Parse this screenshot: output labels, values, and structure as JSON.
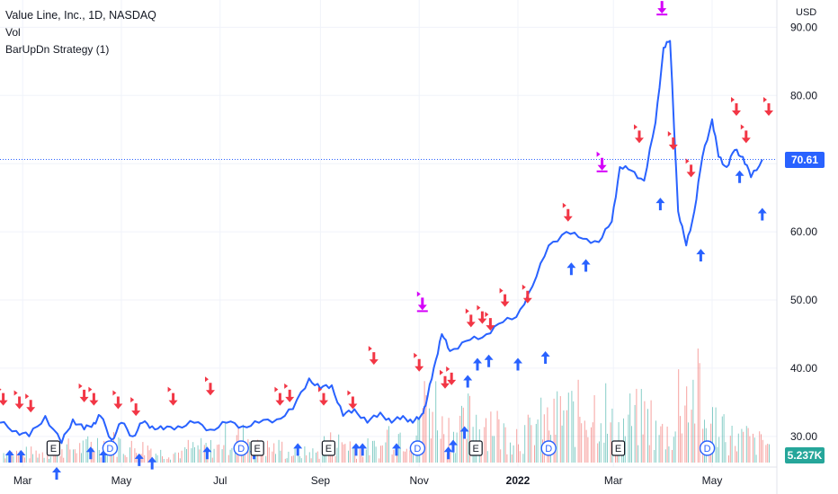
{
  "chart": {
    "symbol": "Value Line, Inc., 1D, NASDAQ",
    "volume_label": "Vol",
    "strategy_label": "BarUpDn Strategy (1)",
    "currency": "USD",
    "last_price": "70.61",
    "last_volume": "5.237K",
    "colors": {
      "line": "#2962ff",
      "buy_arrow": "#2962ff",
      "sell_arrow": "#f23645",
      "exit_arrow": "#d500f9",
      "vol_up": "#26a69a",
      "vol_down": "#ef5350",
      "price_tag": "#2962ff",
      "volume_tag": "#26a69a",
      "grid": "#f0f3fa"
    },
    "event_markers": [
      {
        "type": "E",
        "date": "2021-03-20"
      },
      {
        "type": "D",
        "date": "2021-04-24"
      },
      {
        "type": "D",
        "date": "2021-07-14"
      },
      {
        "type": "E",
        "date": "2021-07-24"
      },
      {
        "type": "E",
        "date": "2021-09-06"
      },
      {
        "type": "D",
        "date": "2021-10-31"
      },
      {
        "type": "E",
        "date": "2021-12-06"
      },
      {
        "type": "D",
        "date": "2022-01-20"
      },
      {
        "type": "E",
        "date": "2022-03-04"
      },
      {
        "type": "D",
        "date": "2022-04-28"
      }
    ]
  },
  "chart_data": {
    "type": "line",
    "title": "Value Line, Inc., 1D, NASDAQ",
    "xlabel": "",
    "ylabel": "USD",
    "x_ticks": [
      "Mar",
      "May",
      "Jul",
      "Sep",
      "Nov",
      "2022",
      "Mar",
      "May"
    ],
    "y_ticks": [
      "30.00",
      "40.00",
      "50.00",
      "60.00",
      "70.00",
      "80.00",
      "90.00"
    ],
    "ylim": [
      25.5,
      94
    ],
    "xlim": [
      "2021-02-15",
      "2022-06-10"
    ],
    "grid": true,
    "series": [
      {
        "x": [
          "2021-02-15",
          "2021-02-25",
          "2021-03-05",
          "2021-03-15",
          "2021-03-25",
          "2021-04-01",
          "2021-04-08",
          "2021-04-14",
          "2021-04-18",
          "2021-04-25",
          "2021-05-01",
          "2021-05-08",
          "2021-05-14",
          "2021-05-20",
          "2021-05-27",
          "2021-06-05",
          "2021-06-15",
          "2021-06-25",
          "2021-07-05",
          "2021-07-15",
          "2021-07-25",
          "2021-08-05",
          "2021-08-15",
          "2021-08-25",
          "2021-09-01",
          "2021-09-08",
          "2021-09-15",
          "2021-09-22",
          "2021-09-30",
          "2021-10-08",
          "2021-10-15",
          "2021-10-22",
          "2021-10-28",
          "2021-11-02",
          "2021-11-05",
          "2021-11-10",
          "2021-11-15",
          "2021-11-20",
          "2021-11-30",
          "2021-12-10",
          "2021-12-20",
          "2021-12-31",
          "2022-01-10",
          "2022-01-20",
          "2022-01-31",
          "2022-02-10",
          "2022-02-20",
          "2022-02-28",
          "2022-03-05",
          "2022-03-12",
          "2022-03-20",
          "2022-03-27",
          "2022-04-01",
          "2022-04-05",
          "2022-04-10",
          "2022-04-15",
          "2022-04-20",
          "2022-04-25",
          "2022-05-01",
          "2022-05-05",
          "2022-05-10",
          "2022-05-15",
          "2022-05-20",
          "2022-05-25",
          "2022-06-01"
        ],
        "values": [
          32.0,
          30.8,
          30.0,
          33.0,
          29.0,
          32.5,
          31.0,
          32.0,
          33.0,
          29.5,
          32.0,
          30.0,
          32.0,
          31.5,
          31.0,
          31.5,
          32.0,
          31.0,
          32.0,
          31.5,
          32.0,
          32.5,
          34.0,
          38.5,
          37.0,
          37.5,
          33.0,
          34.0,
          32.0,
          33.5,
          32.0,
          33.0,
          32.0,
          33.0,
          34.5,
          40.0,
          45.0,
          42.5,
          44.0,
          44.5,
          46.5,
          47.5,
          52.0,
          58.0,
          60.0,
          59.0,
          58.5,
          61.5,
          69.5,
          69.0,
          67.5,
          76.0,
          87.0,
          88.0,
          63.0,
          58.0,
          63.0,
          71.0,
          76.5,
          71.0,
          69.5,
          72.0,
          71.0,
          68.0,
          70.61
        ]
      }
    ],
    "volume": {
      "x": [
        "2021-03-01",
        "2021-03-20",
        "2021-04-10",
        "2021-05-01",
        "2021-05-20",
        "2021-06-10",
        "2021-07-01",
        "2021-07-20",
        "2021-08-10",
        "2021-09-01",
        "2021-09-20",
        "2021-10-10",
        "2021-11-01",
        "2021-11-15",
        "2021-12-01",
        "2021-12-20",
        "2022-01-10",
        "2022-01-25",
        "2022-02-10",
        "2022-02-25",
        "2022-03-10",
        "2022-03-25",
        "2022-04-10",
        "2022-04-25",
        "2022-05-10",
        "2022-05-25"
      ],
      "values": [
        2,
        3,
        4,
        3,
        2,
        3,
        5,
        3,
        2,
        4,
        3,
        6,
        12,
        7,
        9,
        6,
        8,
        10,
        11,
        7,
        9,
        6,
        14,
        8,
        5,
        4
      ]
    }
  },
  "signals": [
    {
      "type": "sell",
      "date": "2021-02-17",
      "price": 34.5
    },
    {
      "type": "sell",
      "date": "2021-02-27",
      "price": 34.0
    },
    {
      "type": "sell",
      "date": "2021-03-06",
      "price": 33.5
    },
    {
      "type": "buy",
      "date": "2021-02-21",
      "price": 28.0
    },
    {
      "type": "buy",
      "date": "2021-02-28",
      "price": 28.0
    },
    {
      "type": "buy",
      "date": "2021-03-22",
      "price": 25.5
    },
    {
      "type": "sell",
      "date": "2021-04-08",
      "price": 35.0
    },
    {
      "type": "sell",
      "date": "2021-04-14",
      "price": 34.5
    },
    {
      "type": "buy",
      "date": "2021-04-12",
      "price": 28.5
    },
    {
      "type": "buy",
      "date": "2021-04-20",
      "price": 28.0
    },
    {
      "type": "sell",
      "date": "2021-04-29",
      "price": 34.0
    },
    {
      "type": "sell",
      "date": "2021-05-10",
      "price": 33.0
    },
    {
      "type": "buy",
      "date": "2021-05-12",
      "price": 27.5
    },
    {
      "type": "buy",
      "date": "2021-05-20",
      "price": 27.0
    },
    {
      "type": "sell",
      "date": "2021-06-02",
      "price": 34.5
    },
    {
      "type": "sell",
      "date": "2021-06-25",
      "price": 36.0
    },
    {
      "type": "buy",
      "date": "2021-06-23",
      "price": 28.5
    },
    {
      "type": "buy",
      "date": "2021-07-22",
      "price": 28.5
    },
    {
      "type": "sell",
      "date": "2021-08-07",
      "price": 34.5
    },
    {
      "type": "sell",
      "date": "2021-08-13",
      "price": 35.0
    },
    {
      "type": "buy",
      "date": "2021-08-18",
      "price": 29.0
    },
    {
      "type": "sell",
      "date": "2021-09-03",
      "price": 34.5
    },
    {
      "type": "buy",
      "date": "2021-09-07",
      "price": 29.0
    },
    {
      "type": "sell",
      "date": "2021-09-21",
      "price": 34.0
    },
    {
      "type": "buy",
      "date": "2021-09-23",
      "price": 29.0
    },
    {
      "type": "buy",
      "date": "2021-09-27",
      "price": 29.0
    },
    {
      "type": "sell",
      "date": "2021-10-04",
      "price": 40.5
    },
    {
      "type": "buy",
      "date": "2021-10-18",
      "price": 29.0
    },
    {
      "type": "sell",
      "date": "2021-11-01",
      "price": 39.5
    },
    {
      "type": "sell",
      "date": "2021-11-17",
      "price": 37.0
    },
    {
      "type": "sell",
      "date": "2021-11-21",
      "price": 37.5
    },
    {
      "type": "buy",
      "date": "2021-11-19",
      "price": 28.5
    },
    {
      "type": "buy",
      "date": "2021-11-22",
      "price": 29.5
    },
    {
      "type": "buy",
      "date": "2021-11-29",
      "price": 31.5
    },
    {
      "type": "buy",
      "date": "2021-12-01",
      "price": 39.0
    },
    {
      "type": "sell",
      "date": "2021-12-03",
      "price": 46.0
    },
    {
      "type": "sell",
      "date": "2021-12-10",
      "price": 46.5
    },
    {
      "type": "sell",
      "date": "2021-12-15",
      "price": 45.5
    },
    {
      "type": "buy",
      "date": "2021-12-07",
      "price": 41.5
    },
    {
      "type": "buy",
      "date": "2021-12-14",
      "price": 42.0
    },
    {
      "type": "sell",
      "date": "2021-12-24",
      "price": 49.0
    },
    {
      "type": "buy",
      "date": "2022-01-01",
      "price": 41.5
    },
    {
      "type": "sell",
      "date": "2022-01-07",
      "price": 49.5
    },
    {
      "type": "buy",
      "date": "2022-01-18",
      "price": 42.5
    },
    {
      "type": "sell",
      "date": "2022-02-01",
      "price": 61.5
    },
    {
      "type": "buy",
      "date": "2022-02-03",
      "price": 55.5
    },
    {
      "type": "buy",
      "date": "2022-02-12",
      "price": 56.0
    },
    {
      "type": "sell",
      "date": "2022-03-17",
      "price": 73.0
    },
    {
      "type": "buy",
      "date": "2022-03-30",
      "price": 65.0
    },
    {
      "type": "sell",
      "date": "2022-04-07",
      "price": 72.0
    },
    {
      "type": "sell",
      "date": "2022-04-18",
      "price": 68.0
    },
    {
      "type": "buy",
      "date": "2022-04-24",
      "price": 57.5
    },
    {
      "type": "sell",
      "date": "2022-05-16",
      "price": 77.0
    },
    {
      "type": "sell",
      "date": "2022-05-22",
      "price": 73.0
    },
    {
      "type": "buy",
      "date": "2022-05-18",
      "price": 69.0
    },
    {
      "type": "buy",
      "date": "2022-06-01",
      "price": 63.5
    },
    {
      "type": "sell",
      "date": "2022-06-05",
      "price": 77.0
    },
    {
      "type": "exit",
      "date": "2021-11-03",
      "price": 48.5
    },
    {
      "type": "exit",
      "date": "2022-02-22",
      "price": 69.0
    },
    {
      "type": "exit",
      "date": "2022-03-31",
      "price": 92.0
    }
  ]
}
